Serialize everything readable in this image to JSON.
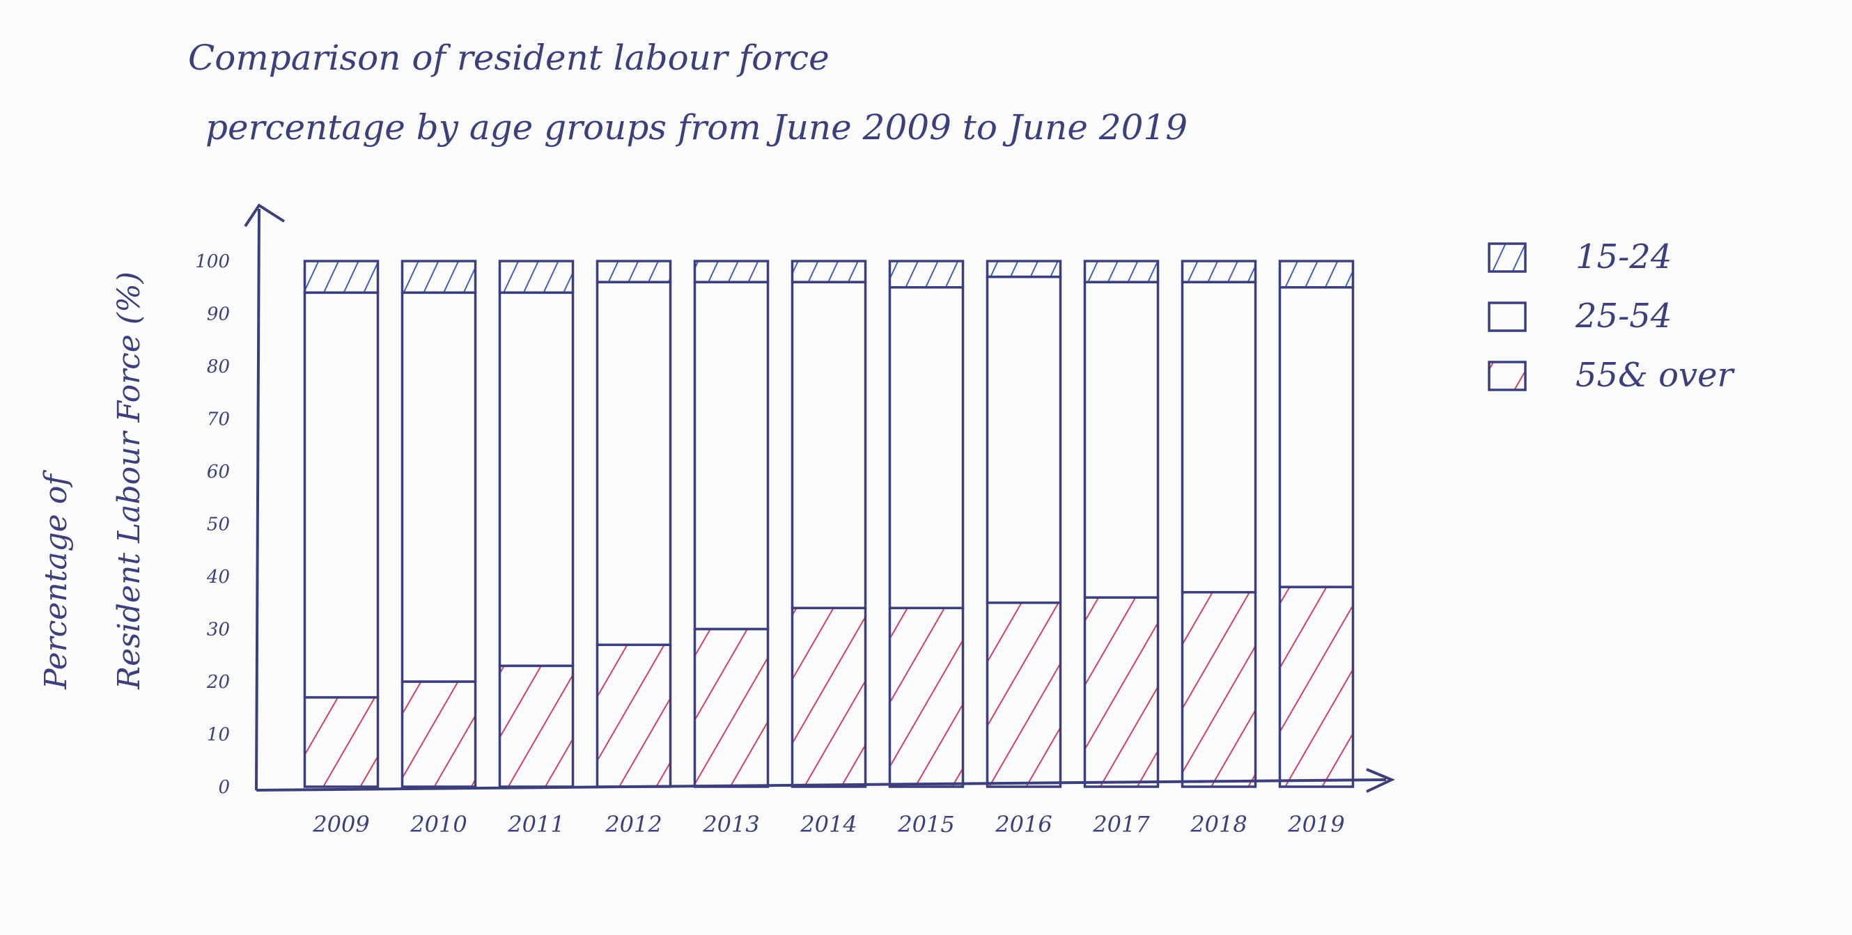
{
  "chart_data": {
    "type": "bar",
    "stacked": true,
    "title_lines": [
      "Comparison of resident labour force",
      "percentage by age groups from June 2009 to June 2019"
    ],
    "ylabel_lines": [
      "Percentage of",
      "Resident Labour Force (%)"
    ],
    "xlabel": "",
    "ylim": [
      0,
      100
    ],
    "yticks": [
      0,
      10,
      20,
      30,
      40,
      50,
      60,
      70,
      80,
      90,
      100
    ],
    "categories": [
      "2009",
      "2010",
      "2011",
      "2012",
      "2013",
      "2014",
      "2015",
      "2016",
      "2017",
      "2018",
      "2019"
    ],
    "series": [
      {
        "name": "55& over",
        "values": [
          17,
          20,
          23,
          27,
          30,
          34,
          34,
          35,
          36,
          37,
          38
        ]
      },
      {
        "name": "25-54",
        "values": [
          77,
          74,
          71,
          69,
          66,
          62,
          61,
          62,
          60,
          59,
          57
        ]
      },
      {
        "name": "15-24",
        "values": [
          6,
          6,
          6,
          4,
          4,
          4,
          5,
          3,
          4,
          4,
          5
        ]
      }
    ],
    "legend_position": "right",
    "grid": false,
    "colors": {
      "ink": "#3c3f7c",
      "red_hatch": "#d04060",
      "blue_hatch": "#3c5fc0",
      "paper": "#fbfbfb"
    }
  }
}
